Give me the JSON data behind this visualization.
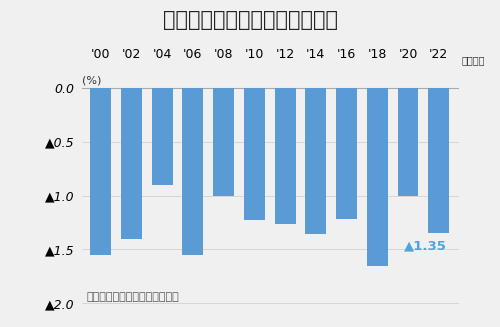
{
  "title": "薬価改定率の推移（通常改定）",
  "categories": [
    "'00",
    "'02",
    "'04",
    "'06",
    "'08",
    "'10",
    "'12",
    "'14",
    "'16",
    "'18",
    "'20",
    "'22"
  ],
  "values": [
    -1.55,
    -1.4,
    -0.9,
    -1.55,
    -1.0,
    -1.23,
    -1.26,
    -1.36,
    -1.22,
    -1.65,
    -1.0,
    -1.35
  ],
  "bar_color": "#5b9bd5",
  "annotation_label": "▲1.35",
  "annotation_color": "#4da6d9",
  "ylabel": "(%)",
  "xlabel_suffix": "（年度）",
  "yticks": [
    0.0,
    -0.5,
    -1.0,
    -1.5,
    -2.0
  ],
  "ytick_labels": [
    "0.0",
    "▲0.5",
    "▲1.0",
    "▲1.5",
    "▲2.0"
  ],
  "ylim": [
    -2.08,
    0.18
  ],
  "source_text": "厄生労働省の資料をもとに作成",
  "background_color": "#f0f0f0",
  "title_fontsize": 15,
  "axis_fontsize": 9,
  "source_fontsize": 8
}
